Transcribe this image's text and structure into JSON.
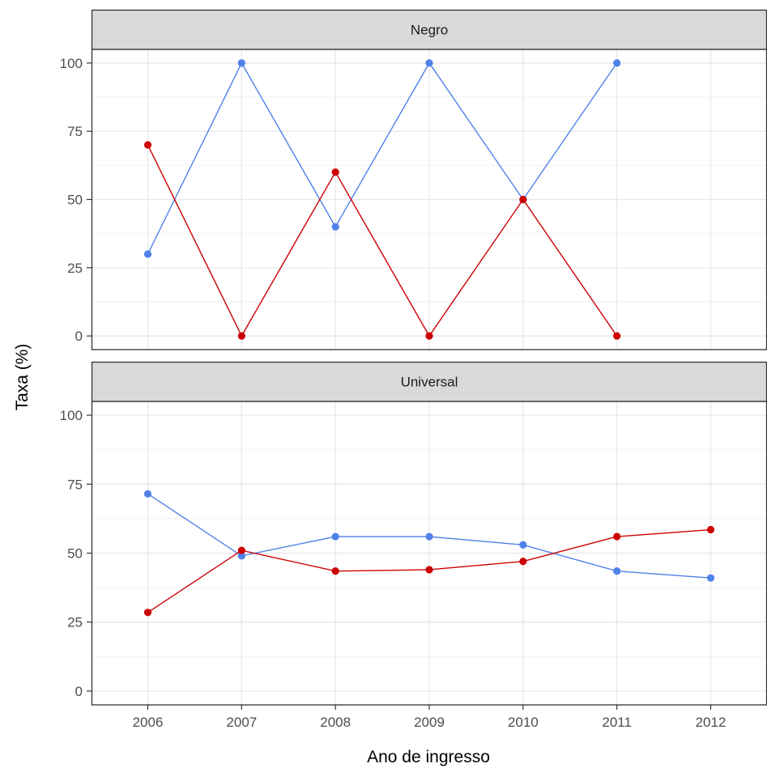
{
  "chart_data": {
    "type": "line",
    "xlabel": "Ano de ingresso",
    "ylabel": "Taxa (%)",
    "x_ticks": [
      "2006",
      "2007",
      "2008",
      "2009",
      "2010",
      "2011",
      "2012"
    ],
    "y_ticks": [
      "0",
      "25",
      "50",
      "75",
      "100"
    ],
    "ylim": [
      -5,
      105
    ],
    "xlim": [
      2005.4,
      2012.6
    ],
    "grid": true,
    "legend": "none",
    "colors": {
      "blue": "#4f81ea",
      "red": "#cc0000"
    },
    "panels": [
      {
        "strip": "Negro",
        "series": [
          {
            "color": "blue",
            "x": [
              2006,
              2007,
              2008,
              2009,
              2010,
              2011
            ],
            "values": [
              30,
              100,
              40,
              100,
              50,
              100
            ]
          },
          {
            "color": "red",
            "x": [
              2006,
              2007,
              2008,
              2009,
              2010,
              2011
            ],
            "values": [
              70,
              0,
              60,
              0,
              50,
              0
            ]
          }
        ]
      },
      {
        "strip": "Universal",
        "series": [
          {
            "color": "blue",
            "x": [
              2006,
              2007,
              2008,
              2009,
              2010,
              2011,
              2012
            ],
            "values": [
              71.5,
              49,
              56,
              56,
              53,
              43.5,
              41
            ]
          },
          {
            "color": "red",
            "x": [
              2006,
              2007,
              2008,
              2009,
              2010,
              2011,
              2012
            ],
            "values": [
              28.5,
              51,
              43.5,
              44,
              47,
              56,
              58.5
            ]
          }
        ]
      }
    ]
  }
}
